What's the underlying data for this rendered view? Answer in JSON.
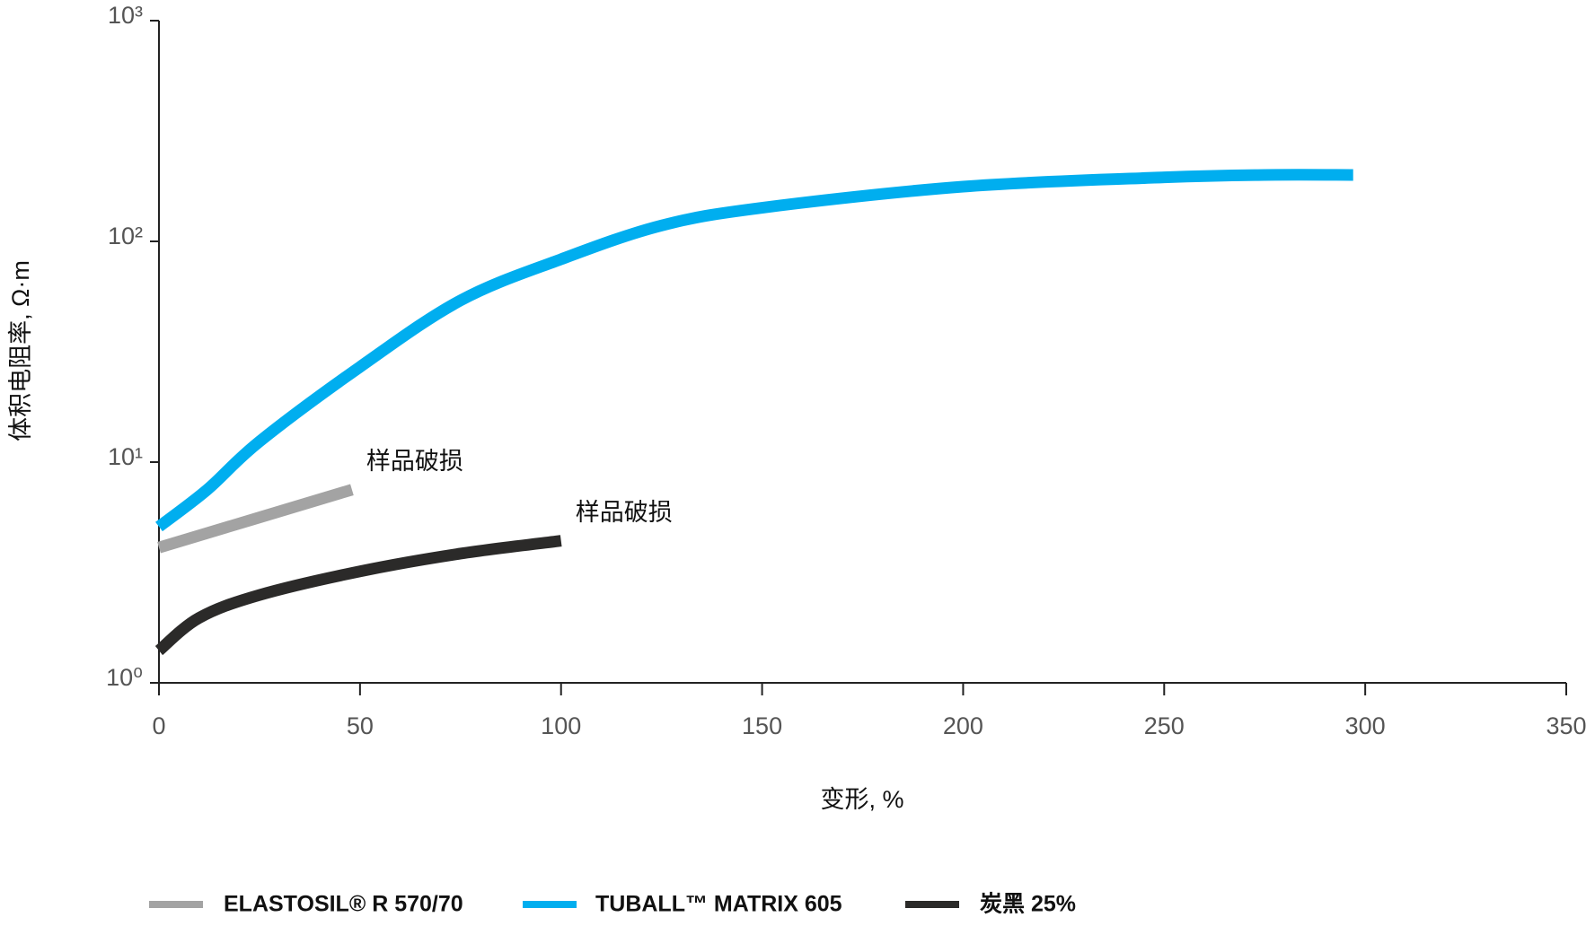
{
  "chart_data": {
    "type": "line",
    "x_label": "变形, %",
    "y_label": "体积电阻率, Ω·m",
    "log_y": true,
    "grid": false,
    "legend": "bottom",
    "xlim": [
      0,
      350
    ],
    "xticks": [
      0,
      50,
      100,
      150,
      200,
      250,
      300,
      350
    ],
    "ylim": [
      1,
      1000
    ],
    "yticks": [
      {
        "value": 1,
        "label": "10⁰"
      },
      {
        "value": 10,
        "label": "10¹"
      },
      {
        "value": 100,
        "label": "10²"
      },
      {
        "value": 1000,
        "label": "10³"
      }
    ],
    "series": [
      {
        "name": "ELASTOSIL® R 570/70",
        "color": "#a3a3a3",
        "x": [
          0,
          48
        ],
        "values": [
          4.1,
          7.5
        ]
      },
      {
        "name": "TUBALL™  MATRIX 605",
        "color": "#00aeef",
        "x": [
          0,
          12,
          25,
          50,
          75,
          100,
          125,
          150,
          200,
          250,
          275,
          297
        ],
        "values": [
          5.1,
          7.5,
          12.4,
          27,
          54,
          83,
          118,
          142,
          177,
          195,
          200,
          200
        ]
      },
      {
        "name": "炭黑 25%",
        "color": "#2b2a29",
        "x": [
          0,
          10,
          25,
          50,
          75,
          100
        ],
        "values": [
          1.4,
          1.97,
          2.5,
          3.2,
          3.85,
          4.4
        ]
      }
    ],
    "annotations": [
      "样品破损",
      "样品破损"
    ]
  }
}
